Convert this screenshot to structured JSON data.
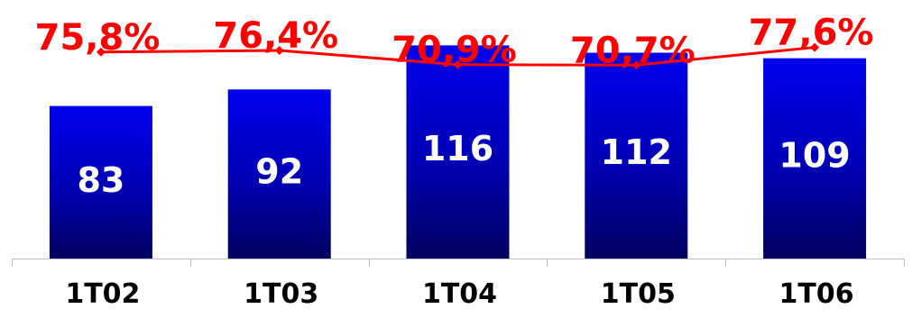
{
  "chart_data": {
    "type": "bar",
    "categories": [
      "1T02",
      "1T03",
      "1T04",
      "1T05",
      "1T06"
    ],
    "series": [
      {
        "type": "bar",
        "values": [
          83,
          92,
          116,
          112,
          109
        ],
        "value_labels": [
          "83",
          "92",
          "116",
          "112",
          "109"
        ],
        "color": "#0000e6"
      },
      {
        "type": "line",
        "values": [
          75.8,
          76.4,
          70.9,
          70.7,
          77.6
        ],
        "value_labels": [
          "75,8%",
          "76,4%",
          "70,9%",
          "70,7%",
          "77,6%"
        ],
        "color": "#ff0000"
      }
    ],
    "title": "",
    "xlabel": "",
    "ylabel": "",
    "legend": "none",
    "grid": false
  }
}
